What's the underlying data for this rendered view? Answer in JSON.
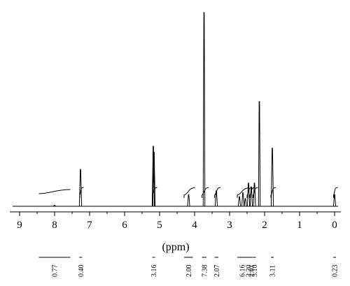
{
  "chart_data": {
    "type": "line",
    "title": "",
    "xlabel": "(ppm)",
    "ylabel": "",
    "x_reversed": true,
    "xlim": [
      9.2,
      -0.1
    ],
    "ylim": [
      0,
      100
    ],
    "grid": false,
    "x_ticks": [
      9,
      8,
      7,
      6,
      5,
      4,
      3,
      2,
      1,
      0
    ],
    "x_tick_labels": [
      "9",
      "8",
      "7",
      "6",
      "5",
      "4",
      "3",
      "2",
      "1",
      "0"
    ],
    "peaks": [
      {
        "ppm": 8.0,
        "height": 0.6
      },
      {
        "ppm": 7.26,
        "height": 19
      },
      {
        "ppm": 5.18,
        "height": 31
      },
      {
        "ppm": 5.16,
        "height": 28
      },
      {
        "ppm": 4.17,
        "height": 6
      },
      {
        "ppm": 3.73,
        "height": 100
      },
      {
        "ppm": 3.38,
        "height": 8
      },
      {
        "ppm": 2.72,
        "height": 5
      },
      {
        "ppm": 2.62,
        "height": 7
      },
      {
        "ppm": 2.55,
        "height": 4
      },
      {
        "ppm": 2.46,
        "height": 12
      },
      {
        "ppm": 2.38,
        "height": 10
      },
      {
        "ppm": 2.29,
        "height": 12
      },
      {
        "ppm": 2.15,
        "height": 54
      },
      {
        "ppm": 1.78,
        "height": 30
      },
      {
        "ppm": 0.0,
        "height": 6
      }
    ],
    "integrals": [
      {
        "from": 8.45,
        "to": 7.55,
        "label": "0.77"
      },
      {
        "from": 7.28,
        "to": 7.23,
        "label": "0.40"
      },
      {
        "from": 5.21,
        "to": 5.13,
        "label": "3.16"
      },
      {
        "from": 4.3,
        "to": 4.05,
        "label": "2.00"
      },
      {
        "from": 3.79,
        "to": 3.66,
        "label": "7.38"
      },
      {
        "from": 3.43,
        "to": 3.32,
        "label": "2.07"
      },
      {
        "from": 2.78,
        "to": 2.5,
        "label": "6.16"
      },
      {
        "from": 2.5,
        "to": 2.42,
        "label": "2.20"
      },
      {
        "from": 2.42,
        "to": 2.34,
        "label": "2.01"
      },
      {
        "from": 2.33,
        "to": 2.25,
        "label": "3.10"
      },
      {
        "from": 1.82,
        "to": 1.74,
        "label": "3.11"
      },
      {
        "from": 0.03,
        "to": -0.03,
        "label": "0.23"
      }
    ]
  }
}
